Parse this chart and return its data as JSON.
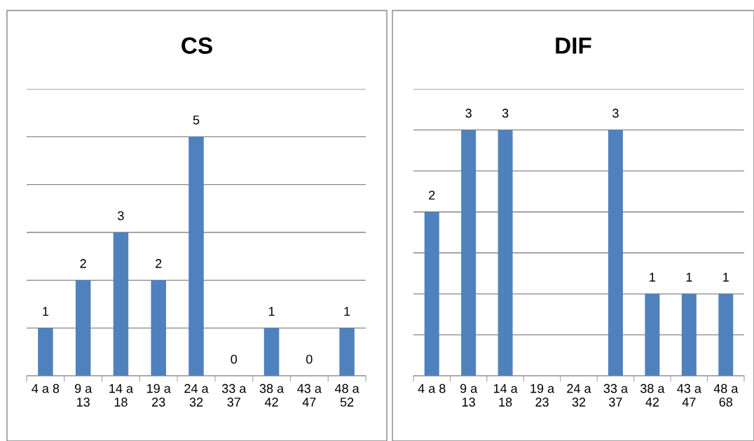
{
  "chart_data": [
    {
      "type": "bar",
      "title": "CS",
      "categories": [
        "4 a 8",
        "9 a\n13",
        "14 a\n18",
        "19 a\n23",
        "24 a\n32",
        "33 a\n37",
        "38 a\n42",
        "43 a\n47",
        "48 a\n52"
      ],
      "values": [
        1,
        2,
        3,
        2,
        5,
        0,
        1,
        0,
        1
      ],
      "color": "#4f81bd",
      "data_labels": true,
      "ylim": [
        0,
        6
      ],
      "yticks": [
        {
          "value": 0,
          "label": null
        },
        {
          "value": 1,
          "label": null
        },
        {
          "value": 2,
          "label": null
        },
        {
          "value": 3,
          "label": null
        },
        {
          "value": 4,
          "label": null
        },
        {
          "value": 5,
          "label": null
        },
        {
          "value": 6,
          "label": null
        }
      ],
      "grid": "y",
      "tick_labels": "x"
    },
    {
      "type": "bar",
      "title": "DIF",
      "categories": [
        "4 a 8",
        "9 a\n13",
        "14 a\n18",
        "19 a\n23",
        "24 a\n32",
        "33 a\n37",
        "38 a\n42",
        "43 a\n47",
        "48 a\n68"
      ],
      "values": [
        2,
        3,
        3,
        null,
        null,
        3,
        1,
        1,
        1
      ],
      "color": "#4f81bd",
      "data_labels": true,
      "ylim": [
        0,
        3.5
      ],
      "yticks": [
        {
          "value": 0,
          "label": null
        },
        {
          "value": 0.5,
          "label": null
        },
        {
          "value": 1,
          "label": null
        },
        {
          "value": 1.5,
          "label": null
        },
        {
          "value": 2,
          "label": null
        },
        {
          "value": 2.5,
          "label": null
        },
        {
          "value": 3,
          "label": null
        },
        {
          "value": 3.5,
          "label": null
        }
      ],
      "grid": "y",
      "tick_labels": "x"
    }
  ]
}
